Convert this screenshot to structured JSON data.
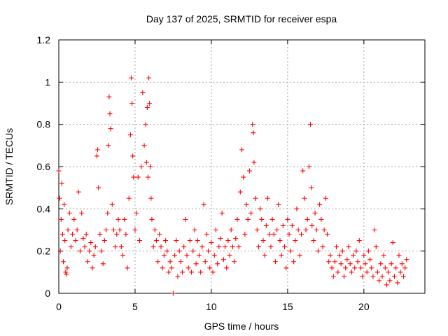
{
  "chart_data": {
    "type": "scatter",
    "title": "Day 137 of 2025, SRMTID for receiver espa",
    "xlabel": "GPS time / hours",
    "ylabel": "SRMTID / TECUs",
    "xlim": [
      0,
      24
    ],
    "ylim": [
      0,
      1.2
    ],
    "xticks": [
      0,
      5,
      10,
      15,
      20
    ],
    "yticks": [
      0,
      0.2,
      0.4,
      0.6,
      0.8,
      1,
      1.2
    ],
    "xtick_labels": [
      "0",
      "5",
      "10",
      "15",
      "20"
    ],
    "ytick_labels": [
      "0",
      "0.2",
      "0.4",
      "0.6",
      "0.8",
      "1",
      "1.2"
    ],
    "grid": true,
    "marker": "+",
    "color": "#ff0000",
    "series": [
      {
        "name": "SRMTID",
        "x": [
          0.0,
          0.05,
          0.1,
          0.15,
          0.2,
          0.25,
          0.3,
          0.35,
          0.4,
          0.45,
          0.5,
          0.55,
          0.6,
          0.7,
          0.8,
          0.9,
          1.0,
          1.1,
          1.2,
          1.3,
          1.4,
          1.5,
          1.6,
          1.7,
          1.8,
          1.9,
          2.0,
          2.1,
          2.2,
          2.3,
          2.4,
          2.5,
          2.55,
          2.6,
          2.7,
          2.8,
          2.9,
          3.0,
          3.1,
          3.2,
          3.25,
          3.3,
          3.35,
          3.4,
          3.5,
          3.6,
          3.7,
          3.8,
          3.9,
          4.0,
          4.1,
          4.2,
          4.3,
          4.4,
          4.5,
          4.6,
          4.7,
          4.75,
          4.8,
          4.85,
          4.9,
          5.0,
          5.1,
          5.2,
          5.3,
          5.4,
          5.5,
          5.6,
          5.7,
          5.75,
          5.8,
          5.85,
          5.9,
          5.95,
          6.0,
          6.05,
          6.1,
          6.2,
          6.3,
          6.4,
          6.5,
          6.6,
          6.7,
          6.8,
          6.9,
          7.0,
          7.1,
          7.2,
          7.3,
          7.4,
          7.5,
          7.6,
          7.7,
          7.8,
          7.9,
          8.0,
          8.1,
          8.2,
          8.3,
          8.4,
          8.5,
          8.6,
          8.7,
          8.8,
          8.9,
          9.0,
          9.1,
          9.2,
          9.3,
          9.4,
          9.5,
          9.6,
          9.7,
          9.8,
          9.9,
          10.0,
          10.1,
          10.2,
          10.3,
          10.4,
          10.5,
          10.6,
          10.7,
          10.8,
          10.9,
          11.0,
          11.1,
          11.2,
          11.3,
          11.4,
          11.5,
          11.6,
          11.7,
          11.8,
          11.9,
          12.0,
          12.1,
          12.2,
          12.3,
          12.4,
          12.5,
          12.6,
          12.7,
          12.75,
          12.8,
          12.9,
          13.0,
          13.1,
          13.2,
          13.3,
          13.4,
          13.5,
          13.6,
          13.7,
          13.8,
          13.9,
          14.0,
          14.1,
          14.2,
          14.3,
          14.4,
          14.5,
          14.6,
          14.7,
          14.8,
          14.9,
          15.0,
          15.1,
          15.2,
          15.3,
          15.4,
          15.5,
          15.6,
          15.7,
          15.8,
          15.9,
          16.0,
          16.1,
          16.2,
          16.3,
          16.4,
          16.5,
          16.55,
          16.6,
          16.7,
          16.8,
          16.9,
          17.0,
          17.1,
          17.2,
          17.3,
          17.4,
          17.5,
          17.6,
          17.7,
          17.8,
          17.9,
          18.0,
          18.1,
          18.2,
          18.3,
          18.4,
          18.5,
          18.6,
          18.7,
          18.8,
          18.9,
          19.0,
          19.1,
          19.2,
          19.3,
          19.4,
          19.5,
          19.6,
          19.7,
          19.8,
          19.9,
          20.0,
          20.1,
          20.2,
          20.3,
          20.4,
          20.5,
          20.6,
          20.7,
          20.8,
          20.9,
          21.0,
          21.1,
          21.2,
          21.3,
          21.4,
          21.5,
          21.6,
          21.7,
          21.8,
          21.9,
          22.0,
          22.1,
          22.2,
          22.3,
          22.4,
          22.5,
          22.6,
          22.7,
          22.8
        ],
        "y": [
          0.58,
          0.45,
          0.2,
          0.35,
          0.52,
          0.28,
          0.15,
          0.42,
          0.25,
          0.1,
          0.09,
          0.12,
          0.3,
          0.38,
          0.22,
          0.28,
          0.35,
          0.25,
          0.3,
          0.48,
          0.2,
          0.38,
          0.26,
          0.22,
          0.28,
          0.15,
          0.2,
          0.24,
          0.12,
          0.18,
          0.22,
          0.65,
          0.68,
          0.5,
          0.28,
          0.2,
          0.14,
          0.25,
          0.3,
          0.38,
          0.7,
          0.93,
          0.85,
          0.78,
          0.42,
          0.3,
          0.22,
          0.28,
          0.35,
          0.3,
          0.22,
          0.18,
          0.35,
          0.28,
          0.12,
          0.45,
          0.75,
          1.02,
          0.9,
          0.65,
          0.55,
          0.3,
          0.38,
          0.55,
          0.25,
          0.6,
          0.95,
          0.7,
          0.8,
          0.62,
          0.88,
          0.55,
          1.02,
          0.9,
          0.6,
          0.45,
          0.35,
          0.22,
          0.3,
          0.25,
          0.15,
          0.28,
          0.22,
          0.12,
          0.18,
          0.25,
          0.2,
          0.1,
          0.15,
          0.12,
          0.0,
          0.18,
          0.25,
          0.08,
          0.2,
          0.15,
          0.1,
          0.22,
          0.35,
          0.18,
          0.12,
          0.25,
          0.1,
          0.2,
          0.3,
          0.14,
          0.25,
          0.18,
          0.1,
          0.22,
          0.42,
          0.15,
          0.28,
          0.2,
          0.12,
          0.24,
          0.1,
          0.18,
          0.3,
          0.14,
          0.22,
          0.26,
          0.38,
          0.16,
          0.22,
          0.12,
          0.25,
          0.18,
          0.3,
          0.22,
          0.15,
          0.26,
          0.35,
          0.22,
          0.48,
          0.68,
          0.55,
          0.28,
          0.42,
          0.35,
          0.58,
          0.38,
          0.8,
          0.76,
          0.62,
          0.45,
          0.3,
          0.22,
          0.4,
          0.35,
          0.25,
          0.18,
          0.32,
          0.45,
          0.28,
          0.22,
          0.35,
          0.28,
          0.15,
          0.3,
          0.42,
          0.25,
          0.18,
          0.32,
          0.22,
          0.12,
          0.35,
          0.28,
          0.2,
          0.32,
          0.15,
          0.25,
          0.4,
          0.3,
          0.18,
          0.28,
          0.58,
          0.45,
          0.3,
          0.35,
          0.6,
          0.8,
          0.5,
          0.32,
          0.25,
          0.38,
          0.3,
          0.2,
          0.42,
          0.35,
          0.22,
          0.3,
          0.45,
          0.28,
          0.15,
          0.18,
          0.12,
          0.08,
          0.15,
          0.22,
          0.1,
          0.18,
          0.14,
          0.2,
          0.08,
          0.12,
          0.16,
          0.22,
          0.14,
          0.1,
          0.18,
          0.12,
          0.2,
          0.15,
          0.25,
          0.12,
          0.08,
          0.18,
          0.14,
          0.1,
          0.2,
          0.16,
          0.12,
          0.08,
          0.3,
          0.22,
          0.1,
          0.06,
          0.14,
          0.08,
          0.18,
          0.12,
          0.04,
          0.1,
          0.06,
          0.14,
          0.24,
          0.08,
          0.12,
          0.05,
          0.18,
          0.1,
          0.14,
          0.08,
          0.12,
          0.16
        ]
      }
    ]
  }
}
